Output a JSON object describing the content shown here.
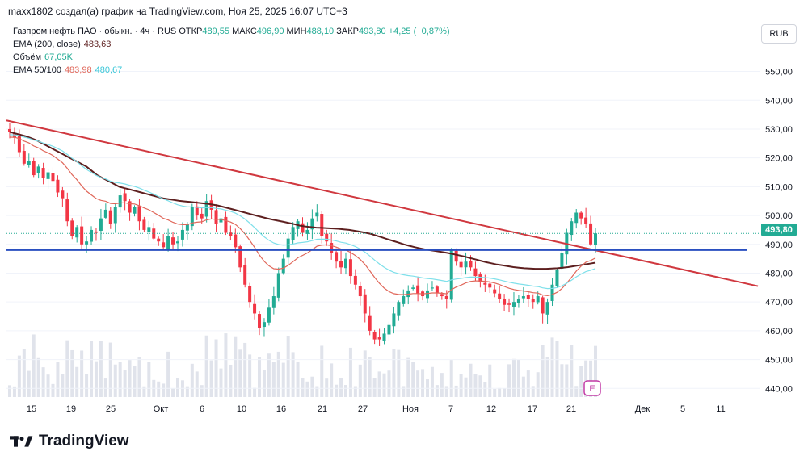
{
  "header": {
    "attribution": "maxx1802 создал(а) график на TradingView.com, Ноя 25, 2025 16:07 UTC+3"
  },
  "legend": {
    "symbol": "Газпром нефть ПАО · обыкн. · 4ч · RUS",
    "open_label": "ОТКР",
    "open": "489,55",
    "high_label": "МАКС",
    "high": "496,90",
    "low_label": "МИН",
    "low": "488,10",
    "close_label": "ЗАКР",
    "close": "493,80",
    "change": "+4,25 (+0,87%)",
    "ema200_label": "EMA (200, close)",
    "ema200_value": "483,63",
    "volume_label": "Объём",
    "volume_value": "67,05K",
    "ema50_100_label": "EMA 50/100",
    "ema50_value": "483,98",
    "ema100_value": "480,67"
  },
  "currency_button": "RUB",
  "logo_text": "TradingView",
  "earnings_marker": "E",
  "colors": {
    "up": "#22ab94",
    "down": "#f23645",
    "ema200": "#5d1f1f",
    "ema50": "#e0675a",
    "ema100": "#7fe0ea",
    "trendline": "#d0383f",
    "support": "#2a4fc0",
    "volume": "#e0e3eb"
  },
  "chart_data": {
    "type": "candlestick",
    "y_axis": {
      "ticks": [
        "550,00",
        "540,00",
        "530,00",
        "520,00",
        "510,00",
        "500,00",
        "490,00",
        "480,00",
        "470,00",
        "460,00",
        "450,00",
        "440,00"
      ],
      "min": 437,
      "max": 558,
      "current_price_label": "493,80",
      "current_price": 493.8
    },
    "x_axis": {
      "ticks": [
        "15",
        "19",
        "25",
        "Окт",
        "6",
        "10",
        "16",
        "21",
        "27",
        "Ноя",
        "7",
        "12",
        "17",
        "21",
        "Дек",
        "5",
        "11"
      ]
    },
    "candles_per_day": 2,
    "closes": [
      529,
      527,
      522,
      518,
      519,
      514,
      517,
      513,
      515,
      512,
      508,
      506,
      498,
      493,
      496,
      490,
      491,
      495,
      494,
      499,
      502,
      497,
      503,
      507,
      505,
      501,
      503,
      498,
      495,
      496,
      492,
      491,
      489,
      493,
      490,
      491,
      495,
      497,
      503,
      500,
      499,
      505,
      502,
      497,
      499,
      494,
      493,
      489,
      482,
      476,
      470,
      466,
      461,
      463,
      468,
      472,
      480,
      485,
      492,
      496,
      498,
      494,
      495,
      499,
      501,
      493,
      491,
      487,
      484,
      482,
      485,
      479,
      476,
      472,
      466,
      460,
      457,
      457,
      459,
      462,
      466,
      470,
      472,
      474,
      475,
      473,
      472,
      474,
      475,
      473,
      472,
      471,
      488,
      484,
      482,
      484,
      482,
      479,
      477,
      476,
      475,
      473,
      471,
      469,
      469,
      470,
      471,
      472,
      471,
      470,
      472,
      466,
      470,
      476,
      481,
      487,
      494,
      498,
      501,
      499,
      497,
      490,
      493.8
    ],
    "ema200": [
      529,
      528.5,
      528,
      527.5,
      526.8,
      526,
      525,
      524,
      523,
      522,
      521,
      520,
      519,
      518,
      517,
      515.5,
      514,
      513,
      512,
      511,
      510,
      509.5,
      509,
      508.5,
      508,
      507.5,
      507,
      506.5,
      506,
      505.7,
      505.4,
      505.1,
      504.9,
      504.7,
      504.5,
      504.3,
      504.1,
      503.8,
      503.5,
      503,
      502.5,
      502,
      501.5,
      501,
      500.5,
      500,
      499.5,
      499,
      498.6,
      498.2,
      497.8,
      497.4,
      497,
      496.5,
      496.2,
      496,
      495.8,
      495.7,
      495.6,
      495.5,
      495.4,
      495.2,
      495,
      494.7,
      494.4,
      494,
      493.6,
      493,
      492.4,
      491.8,
      491.2,
      490.6,
      490,
      489.5,
      489,
      488.6,
      488.2,
      487.9,
      487.6,
      487.3,
      487,
      486.6,
      486.2,
      485.8,
      485.3,
      484.8,
      484.3,
      483.8,
      483.4,
      483,
      482.7,
      482.4,
      482.1,
      481.9,
      481.7,
      481.6,
      481.5,
      481.5,
      481.5,
      481.6,
      481.7,
      481.9,
      482.1,
      482.4,
      482.7,
      483,
      483.3,
      483.63
    ]
  }
}
